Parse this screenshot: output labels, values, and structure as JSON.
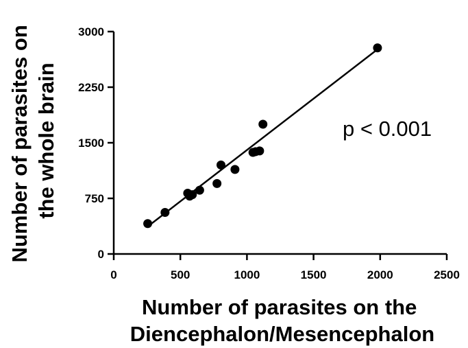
{
  "chart_data": {
    "type": "scatter",
    "title": "",
    "xlabel": [
      "Number of parasites on the",
      "Diencephalon/Mesencephalon"
    ],
    "ylabel": [
      "Number of parasites on",
      "the whole brain"
    ],
    "xlim": [
      0,
      2500
    ],
    "ylim": [
      0,
      3000
    ],
    "xticks": [
      0,
      500,
      1000,
      1500,
      2000,
      2500
    ],
    "yticks": [
      0,
      750,
      1500,
      2250,
      3000
    ],
    "xtick_labels": [
      "0",
      "500",
      "1000",
      "1500",
      "2000",
      "2500"
    ],
    "ytick_labels": [
      "0",
      "750",
      "1500",
      "2250",
      "3000"
    ],
    "grid": false,
    "annotation": "p < 0.001",
    "points": [
      {
        "x": 255,
        "y": 410
      },
      {
        "x": 385,
        "y": 560
      },
      {
        "x": 555,
        "y": 820
      },
      {
        "x": 570,
        "y": 780
      },
      {
        "x": 590,
        "y": 800
      },
      {
        "x": 645,
        "y": 860
      },
      {
        "x": 775,
        "y": 950
      },
      {
        "x": 805,
        "y": 1200
      },
      {
        "x": 910,
        "y": 1140
      },
      {
        "x": 1045,
        "y": 1370
      },
      {
        "x": 1065,
        "y": 1380
      },
      {
        "x": 1095,
        "y": 1390
      },
      {
        "x": 1120,
        "y": 1750
      },
      {
        "x": 1980,
        "y": 2780
      }
    ],
    "fit_line": {
      "x": [
        255,
        1980
      ],
      "y": [
        370,
        2760
      ]
    }
  }
}
